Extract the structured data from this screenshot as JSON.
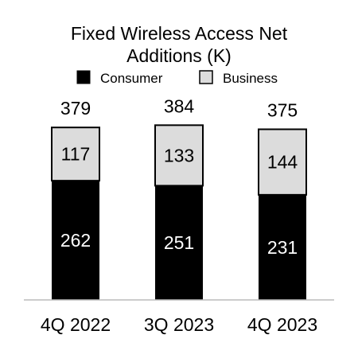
{
  "chart_data": {
    "type": "bar",
    "stacked": true,
    "title": "Fixed Wireless Access Net Additions (K)",
    "title_lines": [
      "Fixed Wireless Access Net",
      "Additions (K)"
    ],
    "categories": [
      "4Q 2022",
      "3Q 2023",
      "4Q 2023"
    ],
    "series": [
      {
        "name": "Consumer",
        "values": [
          262,
          251,
          231
        ],
        "color": "#000000",
        "label_color": "#ffffff"
      },
      {
        "name": "Business",
        "values": [
          117,
          133,
          144
        ],
        "color": "#dcdcdc",
        "label_color": "#000000"
      }
    ],
    "totals": [
      379,
      384,
      375
    ],
    "legend_position": "top",
    "grid": false,
    "xlabel": "",
    "ylabel": "",
    "ylim": [
      0,
      410
    ]
  }
}
